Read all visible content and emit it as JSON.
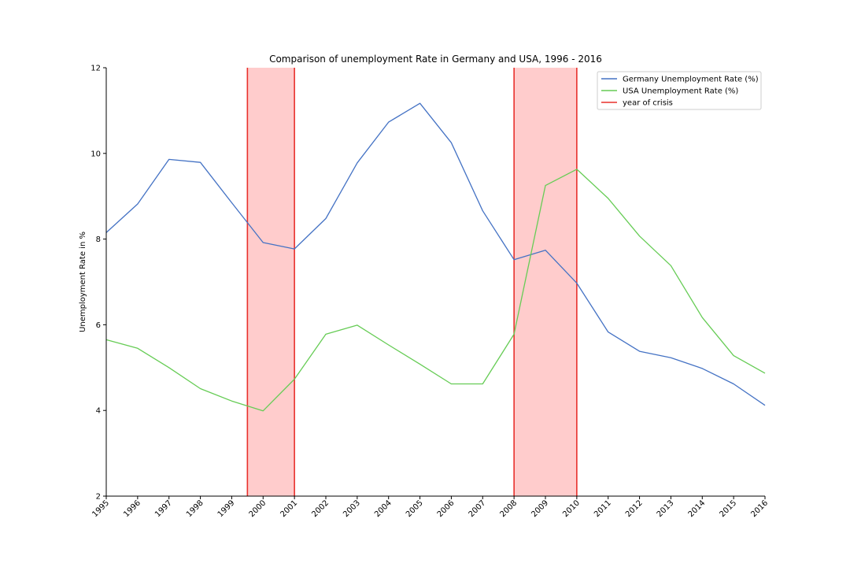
{
  "chart_data": {
    "type": "line",
    "title": "Comparison of unemployment Rate in Germany and USA, 1996 - 2016",
    "xlabel": "",
    "ylabel": "Unemployment Rate in %",
    "x": [
      1995,
      1996,
      1997,
      1998,
      1999,
      2000,
      2001,
      2002,
      2003,
      2004,
      2005,
      2006,
      2007,
      2008,
      2009,
      2010,
      2011,
      2012,
      2013,
      2014,
      2015,
      2016
    ],
    "x_tick_labels": [
      "1995",
      "1996",
      "1997",
      "1998",
      "1999",
      "2000",
      "2001",
      "2002",
      "2003",
      "2004",
      "2005",
      "2006",
      "2007",
      "2008",
      "2009",
      "2010",
      "2011",
      "2012",
      "2013",
      "2014",
      "2015",
      "2016"
    ],
    "xlim": [
      1995,
      2016
    ],
    "ylim": [
      2,
      12
    ],
    "y_ticks": [
      2,
      4,
      6,
      8,
      10,
      12
    ],
    "y_tick_labels": [
      "2",
      "4",
      "6",
      "8",
      "10",
      "12"
    ],
    "grid": false,
    "legend_position": "top-right",
    "series": [
      {
        "name": "Germany Unemployment Rate (%)",
        "color": "#4472c4",
        "values": [
          8.15,
          8.82,
          9.86,
          9.79,
          8.85,
          7.92,
          7.77,
          8.48,
          9.78,
          10.73,
          11.17,
          10.25,
          8.66,
          7.52,
          7.74,
          6.97,
          5.83,
          5.38,
          5.23,
          4.98,
          4.62,
          4.12
        ]
      },
      {
        "name": "USA Unemployment Rate (%)",
        "color": "#66cc55",
        "values": [
          5.65,
          5.45,
          5.0,
          4.51,
          4.22,
          3.99,
          4.73,
          5.78,
          5.99,
          5.53,
          5.08,
          4.62,
          4.62,
          5.78,
          9.25,
          9.63,
          8.95,
          8.07,
          7.38,
          6.17,
          5.28,
          4.87
        ]
      }
    ],
    "crisis_legend_label": "year of crisis",
    "crisis_color": "#e8302c",
    "crisis_fill": "#ffcccc",
    "crisis_periods": [
      {
        "start": 1999.5,
        "end": 2001
      },
      {
        "start": 2008,
        "end": 2010
      }
    ]
  }
}
